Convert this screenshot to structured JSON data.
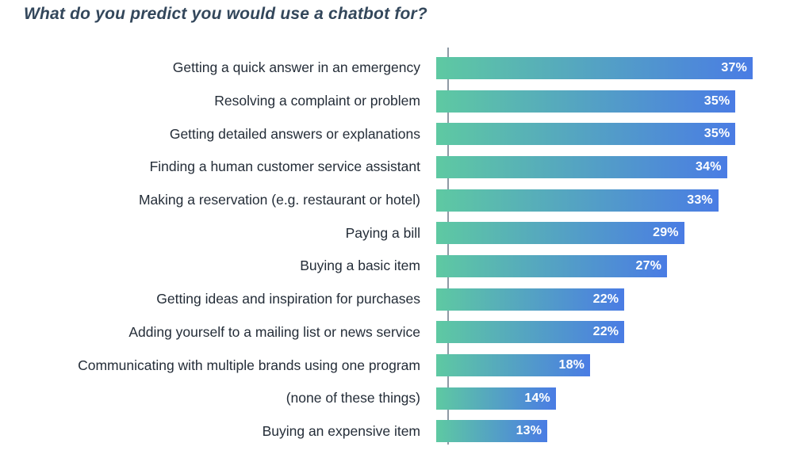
{
  "title": "What do you predict you would use a chatbot for?",
  "colors": {
    "bar_gradient_start": "#5EC9A2",
    "bar_gradient_end": "#4A7CE4",
    "axis_line": "#8F9AA5",
    "title_text": "#33475B",
    "category_text": "#242D38",
    "value_text": "#FFFFFF"
  },
  "chart_data": {
    "type": "bar",
    "orientation": "horizontal",
    "title": "What do you predict you would use a chatbot for?",
    "xlabel": "",
    "ylabel": "",
    "value_suffix": "%",
    "legend": false,
    "grid": false,
    "axis_range": [
      0,
      41.5
    ],
    "categories": [
      "Getting a quick answer in an emergency",
      "Resolving a complaint or problem",
      "Getting detailed answers or explanations",
      "Finding a human customer service assistant",
      "Making a reservation (e.g. restaurant or hotel)",
      "Paying a bill",
      "Buying a basic item",
      "Getting ideas and inspiration for purchases",
      "Adding yourself to a mailing list or news service",
      "Communicating with multiple brands using one program",
      "(none of these things)",
      "Buying an expensive item"
    ],
    "values": [
      37,
      35,
      35,
      34,
      33,
      29,
      27,
      22,
      22,
      18,
      14,
      13
    ],
    "value_labels": [
      "37%",
      "35%",
      "35%",
      "34%",
      "33%",
      "29%",
      "27%",
      "22%",
      "22%",
      "18%",
      "14%",
      "13%"
    ]
  }
}
